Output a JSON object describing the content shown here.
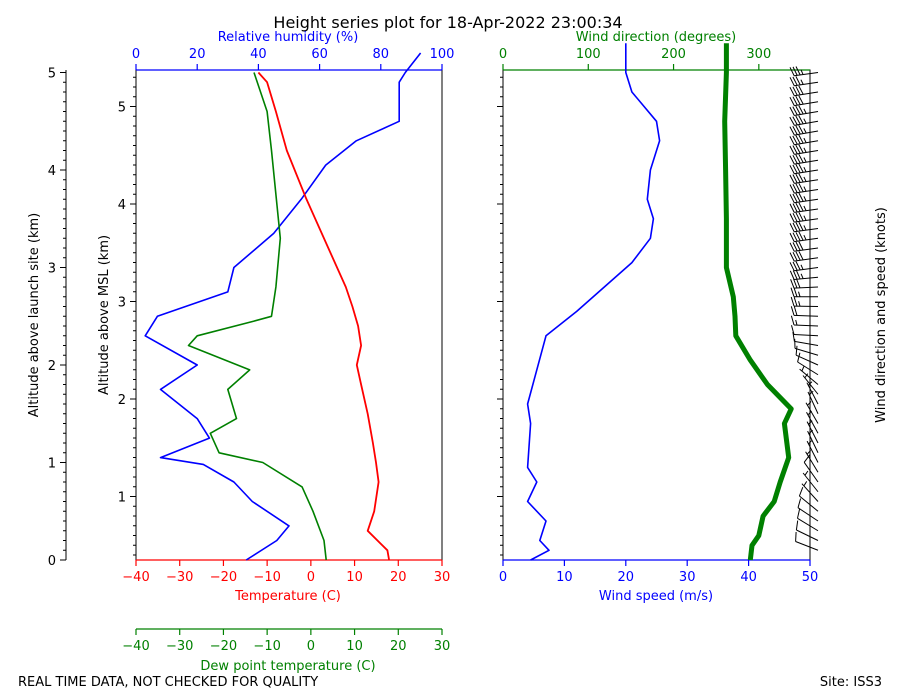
{
  "chart_data": {
    "type": "line",
    "title": "Height series plot for 18-Apr-2022 23:00:34",
    "footer_left": "REAL TIME DATA, NOT CHECKED FOR QUALITY",
    "footer_right": "Site: ISS3",
    "colors": {
      "temperature": "#ff0000",
      "dewpoint": "#008000",
      "rh": "#0000ff",
      "wspd": "#0000ff",
      "wdir": "#008000",
      "barb": "#000000"
    },
    "left_panel": {
      "msl_label": "Altitude above MSL (km)",
      "msl_ticks": [
        "1",
        "2",
        "3",
        "4",
        "5"
      ],
      "agl_label": "Altitude above launch site (km)",
      "agl_ticks": [
        "0",
        "1",
        "2",
        "3",
        "4",
        "5"
      ],
      "temp_axis": {
        "label": "Temperature (C)",
        "range": [
          -40,
          30
        ],
        "ticks": [
          "−40",
          "−30",
          "−20",
          "−10",
          "0",
          "10",
          "20",
          "30"
        ]
      },
      "dew_axis": {
        "label": "Dew point temperature (C)",
        "range": [
          -40,
          30
        ],
        "ticks": [
          "−40",
          "−30",
          "−20",
          "−10",
          "0",
          "10",
          "20",
          "30"
        ]
      },
      "rh_axis": {
        "label": "Relative humidity (%)",
        "range": [
          0,
          100
        ],
        "ticks": [
          "0",
          "20",
          "40",
          "60",
          "80",
          "100"
        ]
      },
      "temperature": [
        [
          0.0,
          17.9
        ],
        [
          0.1,
          17.5
        ],
        [
          0.3,
          13.0
        ],
        [
          0.5,
          14.5
        ],
        [
          0.8,
          15.5
        ],
        [
          1.0,
          14.9
        ],
        [
          1.2,
          14.2
        ],
        [
          1.5,
          13.0
        ],
        [
          1.8,
          11.5
        ],
        [
          2.0,
          10.5
        ],
        [
          2.2,
          11.5
        ],
        [
          2.4,
          10.8
        ],
        [
          2.6,
          9.5
        ],
        [
          2.8,
          8.0
        ],
        [
          3.2,
          4.0
        ],
        [
          3.7,
          -1.0
        ],
        [
          4.2,
          -5.5
        ],
        [
          4.6,
          -8.0
        ],
        [
          4.9,
          -10.0
        ],
        [
          5.0,
          -12.0
        ]
      ],
      "dewpoint": [
        [
          0.0,
          3.5
        ],
        [
          0.2,
          3.0
        ],
        [
          0.5,
          0.5
        ],
        [
          0.75,
          -2.0
        ],
        [
          1.0,
          -11.0
        ],
        [
          1.1,
          -21.0
        ],
        [
          1.3,
          -23.0
        ],
        [
          1.45,
          -17.0
        ],
        [
          1.75,
          -19.0
        ],
        [
          1.95,
          -14.0
        ],
        [
          2.2,
          -28.0
        ],
        [
          2.3,
          -26.0
        ],
        [
          2.45,
          -13.0
        ],
        [
          2.5,
          -9.0
        ],
        [
          2.8,
          -8.0
        ],
        [
          3.3,
          -7.0
        ],
        [
          4.2,
          -9.0
        ],
        [
          4.6,
          -10.0
        ],
        [
          5.0,
          -13.0
        ]
      ],
      "rh": [
        [
          0.0,
          36
        ],
        [
          0.2,
          46
        ],
        [
          0.35,
          50
        ],
        [
          0.6,
          38
        ],
        [
          0.8,
          32
        ],
        [
          0.98,
          22
        ],
        [
          1.05,
          8
        ],
        [
          1.25,
          24
        ],
        [
          1.45,
          20
        ],
        [
          1.75,
          8
        ],
        [
          2.0,
          20
        ],
        [
          2.3,
          3
        ],
        [
          2.5,
          7
        ],
        [
          2.75,
          30
        ],
        [
          3.0,
          32
        ],
        [
          3.35,
          45
        ],
        [
          3.7,
          54
        ],
        [
          4.05,
          62
        ],
        [
          4.3,
          72
        ],
        [
          4.5,
          86
        ],
        [
          4.9,
          86
        ],
        [
          5.0,
          88
        ],
        [
          5.2,
          93
        ]
      ]
    },
    "right_panel": {
      "wspd_axis": {
        "label": "Wind speed (m/s)",
        "range": [
          0,
          50
        ],
        "ticks": [
          "0",
          "10",
          "20",
          "30",
          "40",
          "50"
        ]
      },
      "wdir_axis": {
        "label": "Wind direction (degrees)",
        "range": [
          0,
          360
        ],
        "ticks": [
          "0",
          "100",
          "200",
          "300"
        ]
      },
      "barb_label": "Wind direction and speed (knots)",
      "wspd": [
        [
          0.0,
          4.5
        ],
        [
          0.1,
          7.5
        ],
        [
          0.2,
          6.0
        ],
        [
          0.4,
          7.0
        ],
        [
          0.6,
          4.0
        ],
        [
          0.8,
          5.5
        ],
        [
          0.95,
          4.0
        ],
        [
          1.4,
          4.5
        ],
        [
          1.6,
          4.0
        ],
        [
          2.3,
          7.0
        ],
        [
          2.55,
          12.0
        ],
        [
          3.05,
          21.0
        ],
        [
          3.3,
          24.0
        ],
        [
          3.5,
          24.5
        ],
        [
          3.7,
          23.5
        ],
        [
          4.0,
          24.0
        ],
        [
          4.3,
          25.5
        ],
        [
          4.5,
          25.0
        ],
        [
          4.8,
          21.0
        ],
        [
          5.0,
          20.0
        ],
        [
          5.3,
          20.0
        ]
      ],
      "wdir": [
        [
          0.0,
          290
        ],
        [
          0.15,
          292
        ],
        [
          0.25,
          300
        ],
        [
          0.45,
          305
        ],
        [
          0.6,
          318
        ],
        [
          0.8,
          325
        ],
        [
          1.05,
          335
        ],
        [
          1.4,
          330
        ],
        [
          1.55,
          338
        ],
        [
          1.8,
          310
        ],
        [
          2.05,
          290
        ],
        [
          2.3,
          273
        ],
        [
          2.5,
          272
        ],
        [
          2.7,
          270
        ],
        [
          3.0,
          262
        ],
        [
          3.5,
          262
        ],
        [
          4.0,
          261
        ],
        [
          4.5,
          260
        ],
        [
          5.0,
          262
        ],
        [
          5.3,
          262
        ]
      ]
    }
  }
}
